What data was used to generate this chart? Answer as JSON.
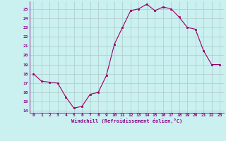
{
  "hours": [
    0,
    1,
    2,
    3,
    4,
    5,
    6,
    7,
    8,
    9,
    10,
    11,
    12,
    13,
    14,
    15,
    16,
    17,
    18,
    19,
    20,
    21,
    22,
    23
  ],
  "values": [
    18,
    17.2,
    17.1,
    17.0,
    15.5,
    14.3,
    14.5,
    15.8,
    16.0,
    17.8,
    21.2,
    23.0,
    24.8,
    25.0,
    25.5,
    24.8,
    25.2,
    25.0,
    24.1,
    23.0,
    22.8,
    20.5,
    19.0,
    19.0
  ],
  "ylim_min": 13.8,
  "ylim_max": 25.8,
  "yticks": [
    14,
    15,
    16,
    17,
    18,
    19,
    20,
    21,
    22,
    23,
    24,
    25
  ],
  "xticks": [
    0,
    1,
    2,
    3,
    4,
    5,
    6,
    7,
    8,
    9,
    10,
    11,
    12,
    13,
    14,
    15,
    16,
    17,
    18,
    19,
    20,
    21,
    22,
    23
  ],
  "xlabel": "Windchill (Refroidissement éolien,°C)",
  "line_color": "#990066",
  "marker": "s",
  "marker_size": 2.0,
  "bg_color": "#caf0f0",
  "grid_color": "#b0c8c8",
  "font_color": "#880088"
}
